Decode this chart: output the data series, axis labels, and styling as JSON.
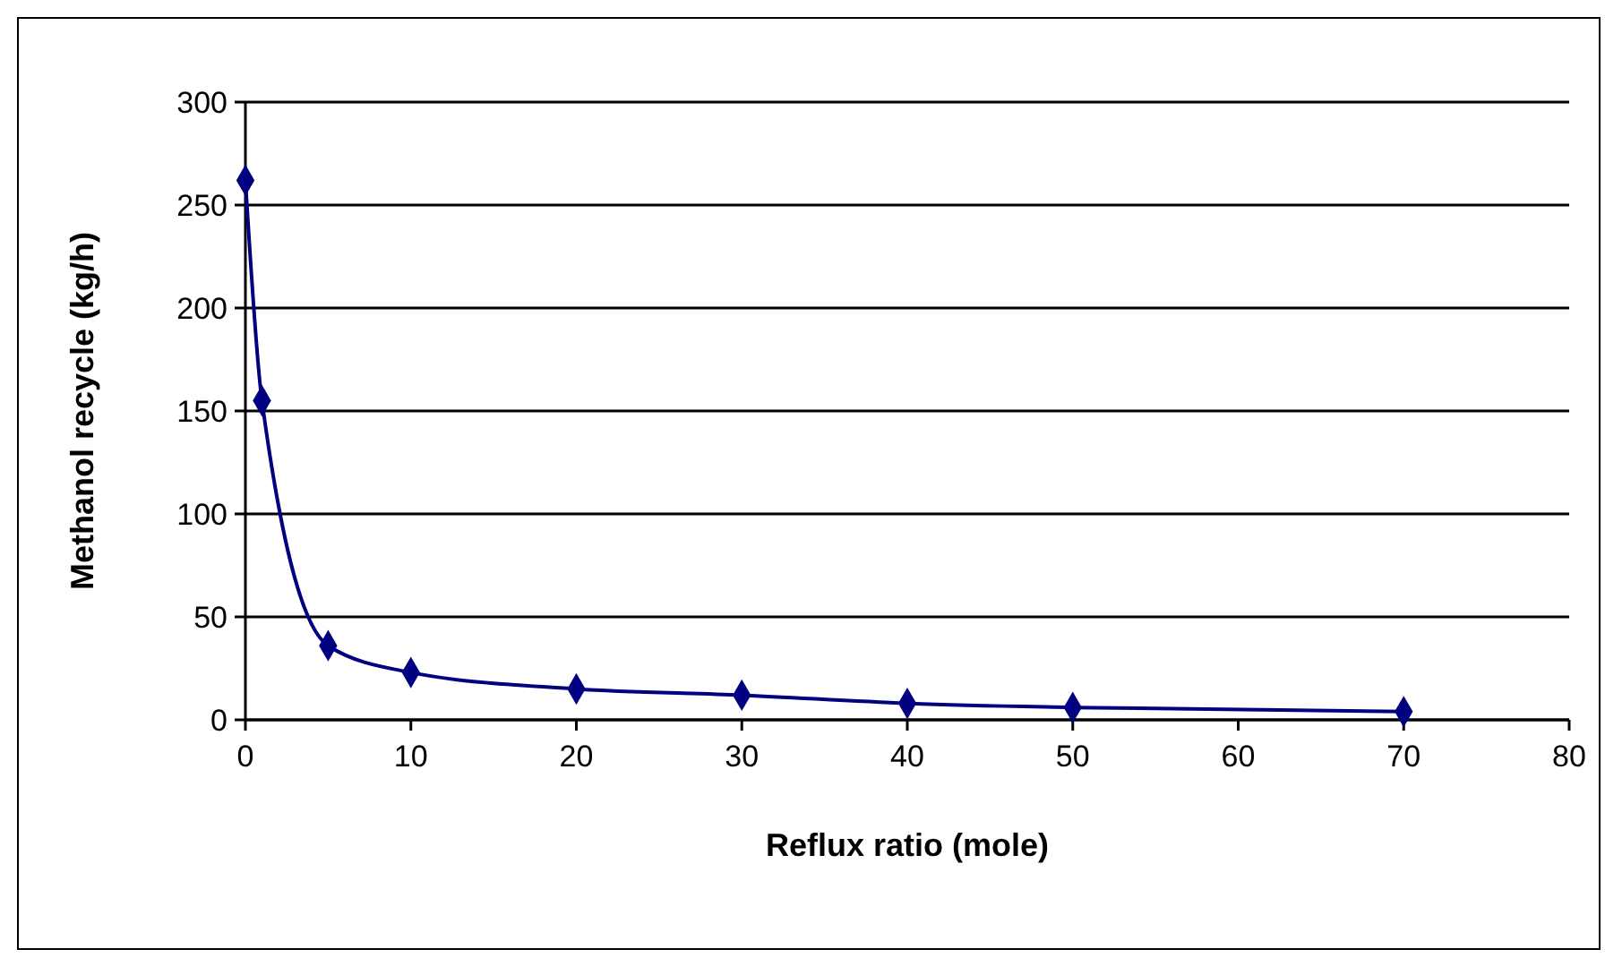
{
  "chart_data": {
    "type": "line",
    "xlabel": "Reflux ratio (mole)",
    "ylabel": "Methanol recycle (kg/h)",
    "x": [
      0,
      1,
      5,
      10,
      20,
      30,
      40,
      50,
      70
    ],
    "series": [
      {
        "color": "#000080",
        "values": [
          262,
          155,
          36,
          23,
          15,
          12,
          8,
          6,
          4
        ]
      }
    ],
    "xlim": [
      0,
      80
    ],
    "xticks": [
      0,
      10,
      20,
      30,
      40,
      50,
      60,
      70,
      80
    ],
    "ylim": [
      0,
      300
    ],
    "yticks": [
      0,
      50,
      100,
      150,
      200,
      250,
      300
    ],
    "grid": "y",
    "marker": "diamond",
    "line_style": "solid"
  }
}
